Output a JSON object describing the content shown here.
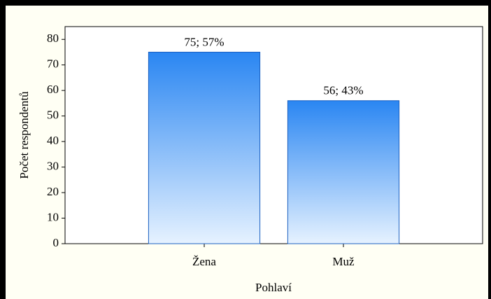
{
  "chart_data": {
    "type": "bar",
    "categories": [
      "Žena",
      "Muž"
    ],
    "values": [
      75,
      56
    ],
    "value_labels": [
      "75; 57%",
      "56; 43%"
    ],
    "x_label": "Pohlaví",
    "y_label": "Počet respondentů",
    "ylim": [
      0,
      85
    ],
    "yticks": [
      0,
      10,
      20,
      30,
      40,
      50,
      60,
      70,
      80
    ],
    "color": "#2a86f2"
  }
}
